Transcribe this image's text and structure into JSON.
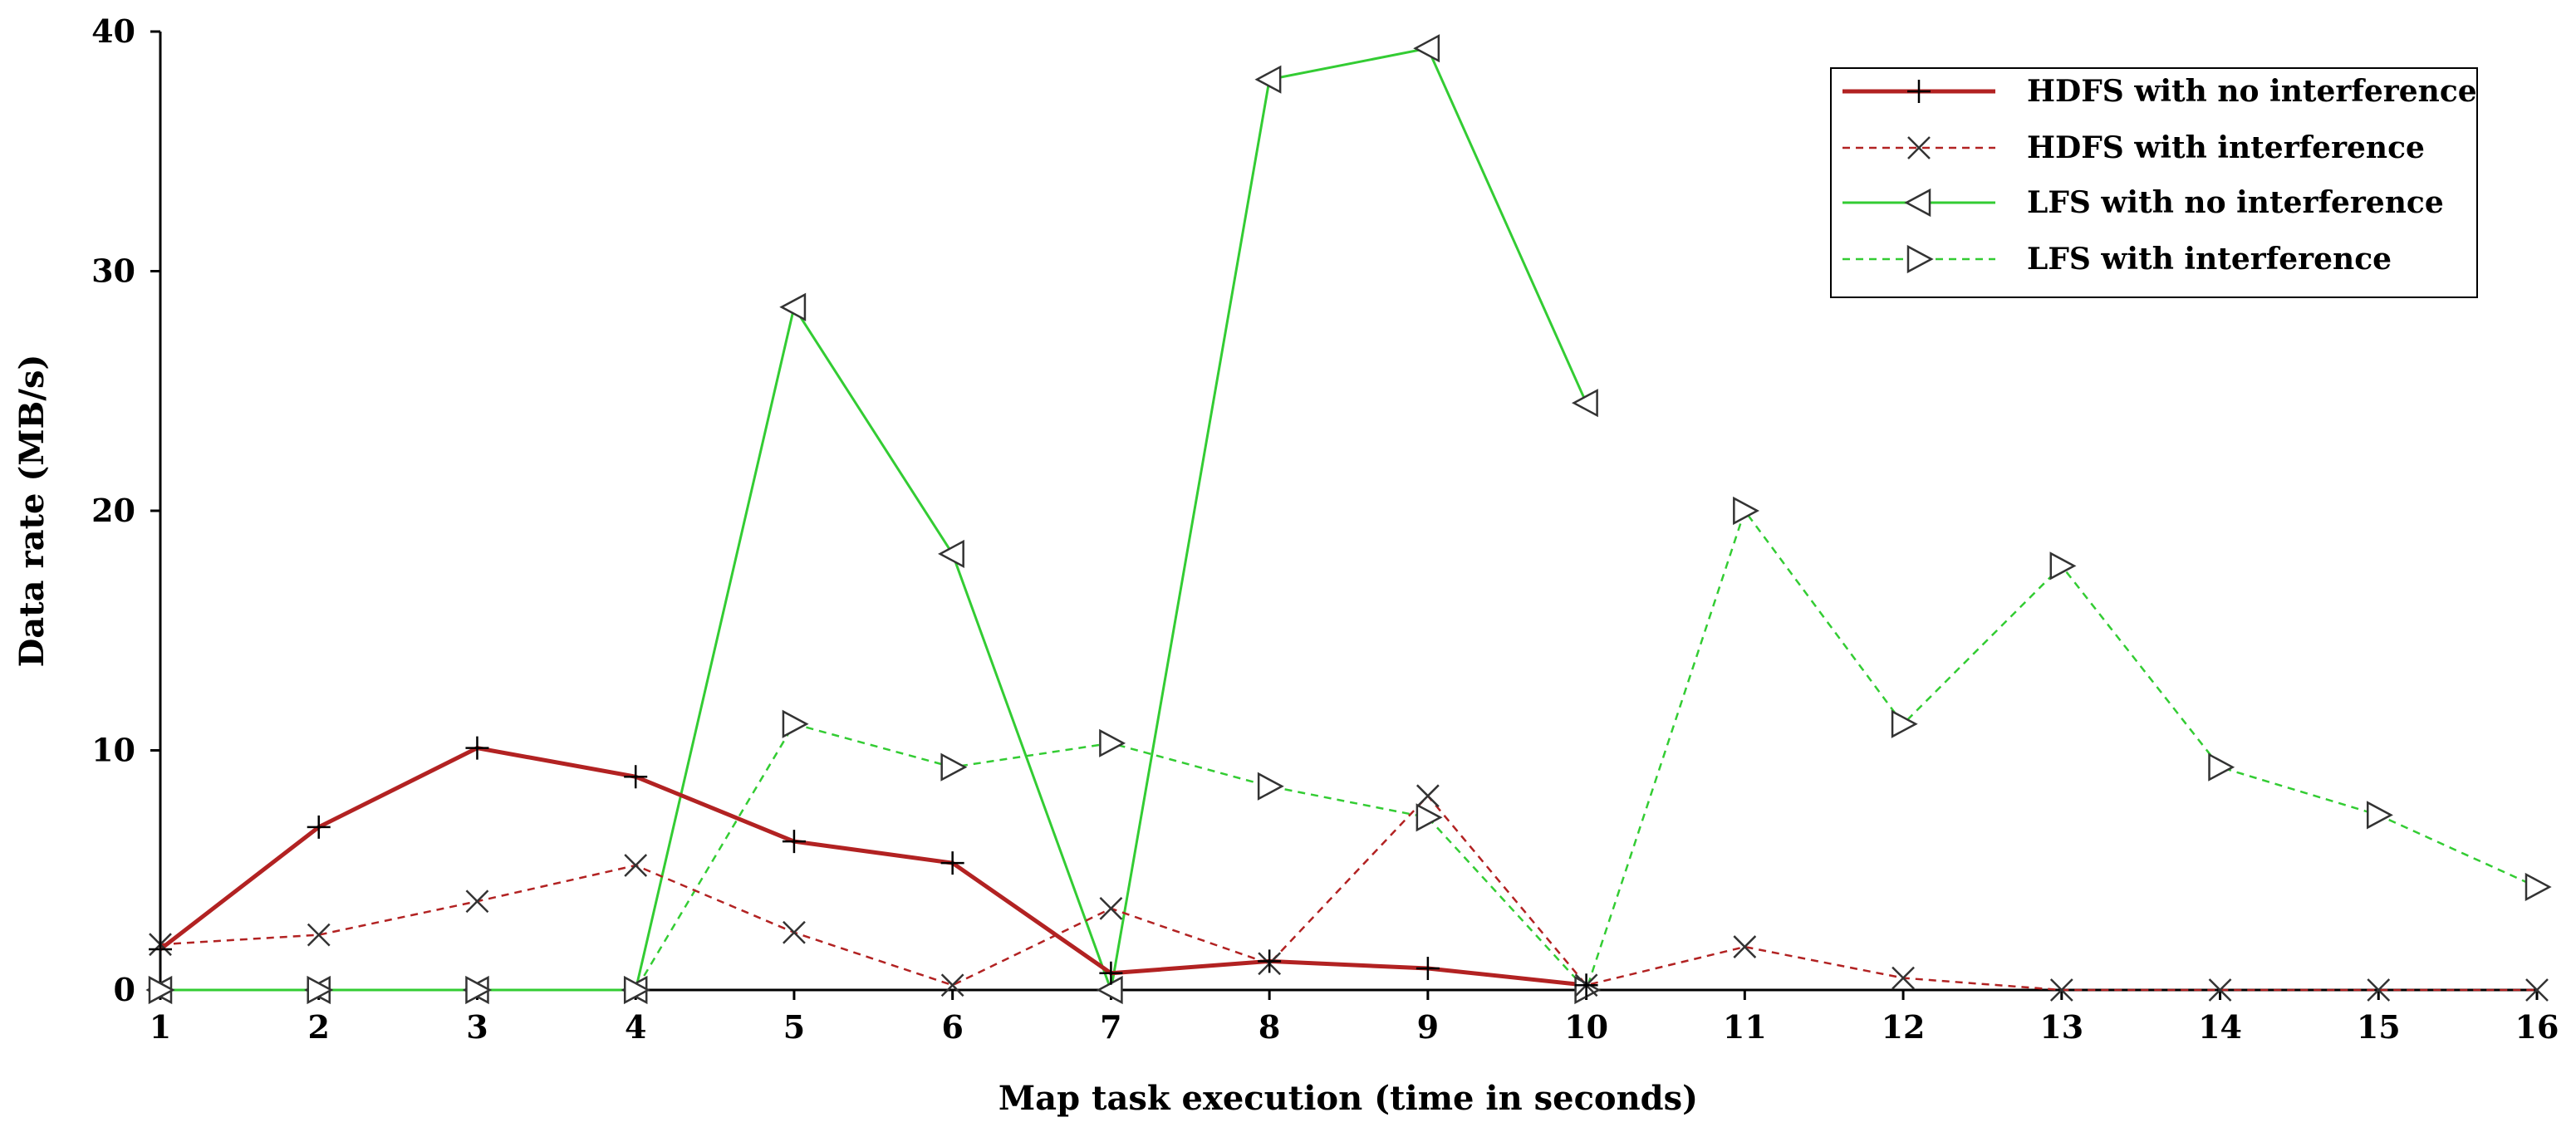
{
  "chart_data": {
    "type": "line",
    "title": "",
    "xlabel": "Map task execution  (time in seconds)",
    "ylabel": "Data rate (MB/s)",
    "xlim": [
      1,
      16
    ],
    "ylim": [
      0,
      40
    ],
    "x_ticks": [
      1,
      2,
      3,
      4,
      5,
      6,
      7,
      8,
      9,
      10,
      11,
      12,
      13,
      14,
      15,
      16
    ],
    "y_ticks": [
      0,
      10,
      20,
      30,
      40
    ],
    "grid": false,
    "legend_position": "top-right",
    "series": [
      {
        "name": "HDFS with no interference",
        "color": "#b22222",
        "line_style": "solid",
        "marker": "plus",
        "x": [
          1,
          2,
          3,
          4,
          5,
          6,
          7,
          8,
          9,
          10
        ],
        "y": [
          1.7,
          6.8,
          10.1,
          8.9,
          6.2,
          5.3,
          0.7,
          1.2,
          0.9,
          0.2
        ]
      },
      {
        "name": "HDFS with interference",
        "color": "#b22222",
        "line_style": "dashed",
        "marker": "x",
        "x": [
          1,
          2,
          3,
          4,
          5,
          6,
          7,
          8,
          9,
          10,
          11,
          12,
          13,
          14,
          15,
          16
        ],
        "y": [
          1.9,
          2.3,
          3.7,
          5.2,
          2.4,
          0.2,
          3.4,
          1.1,
          8.1,
          0.2,
          1.8,
          0.5,
          0.0,
          0.0,
          0.0,
          0.0
        ]
      },
      {
        "name": "LFS with no interference",
        "color": "#33cc33",
        "line_style": "solid",
        "marker": "triangle-left",
        "x": [
          1,
          2,
          3,
          4,
          5,
          6,
          7,
          8,
          9,
          10
        ],
        "y": [
          0.0,
          0.0,
          0.0,
          0.0,
          28.5,
          18.2,
          0.0,
          38.0,
          39.3,
          24.5
        ]
      },
      {
        "name": "LFS with interference",
        "color": "#33cc33",
        "line_style": "dashed",
        "marker": "triangle-right",
        "x": [
          1,
          2,
          3,
          4,
          5,
          6,
          7,
          8,
          9,
          10,
          11,
          12,
          13,
          14,
          15,
          16
        ],
        "y": [
          0.0,
          0.0,
          0.0,
          0.0,
          11.1,
          9.3,
          10.3,
          8.5,
          7.2,
          0.0,
          20.0,
          11.1,
          17.7,
          9.3,
          7.3,
          4.3
        ]
      }
    ]
  }
}
